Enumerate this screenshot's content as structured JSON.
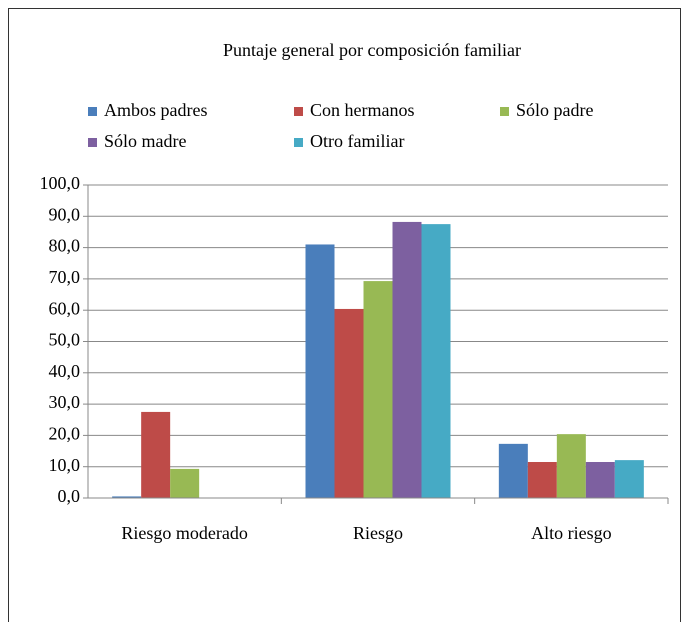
{
  "chart_data": {
    "type": "bar",
    "title": "Puntaje general por composición  familiar",
    "categories": [
      "Riesgo moderado",
      "Riesgo",
      "Alto riesgo"
    ],
    "series": [
      {
        "name": "Ambos padres",
        "color": "#4a7ebb",
        "values": [
          0.5,
          81.0,
          17.3
        ]
      },
      {
        "name": "Con hermanos",
        "color": "#be4b48",
        "values": [
          27.5,
          60.4,
          11.5
        ]
      },
      {
        "name": "Sólo padre",
        "color": "#98b954",
        "values": [
          9.3,
          69.3,
          20.4
        ]
      },
      {
        "name": "Sólo madre",
        "color": "#7d60a0",
        "values": [
          0,
          88.2,
          11.5
        ]
      },
      {
        "name": "Otro familiar",
        "color": "#46aac5",
        "values": [
          0,
          87.5,
          12.1
        ]
      }
    ],
    "ylim": [
      0,
      100
    ],
    "yticks": [
      {
        "value": 0,
        "label": "0,0"
      },
      {
        "value": 10,
        "label": "10,0"
      },
      {
        "value": 20,
        "label": "20,0"
      },
      {
        "value": 30,
        "label": "30,0"
      },
      {
        "value": 40,
        "label": "40,0"
      },
      {
        "value": 50,
        "label": "50,0"
      },
      {
        "value": 60,
        "label": "60,0"
      },
      {
        "value": 70,
        "label": "70,0"
      },
      {
        "value": 80,
        "label": "80,0"
      },
      {
        "value": 90,
        "label": "90,0"
      },
      {
        "value": 100,
        "label": "100,0"
      }
    ],
    "grid": true,
    "legend": "top"
  }
}
